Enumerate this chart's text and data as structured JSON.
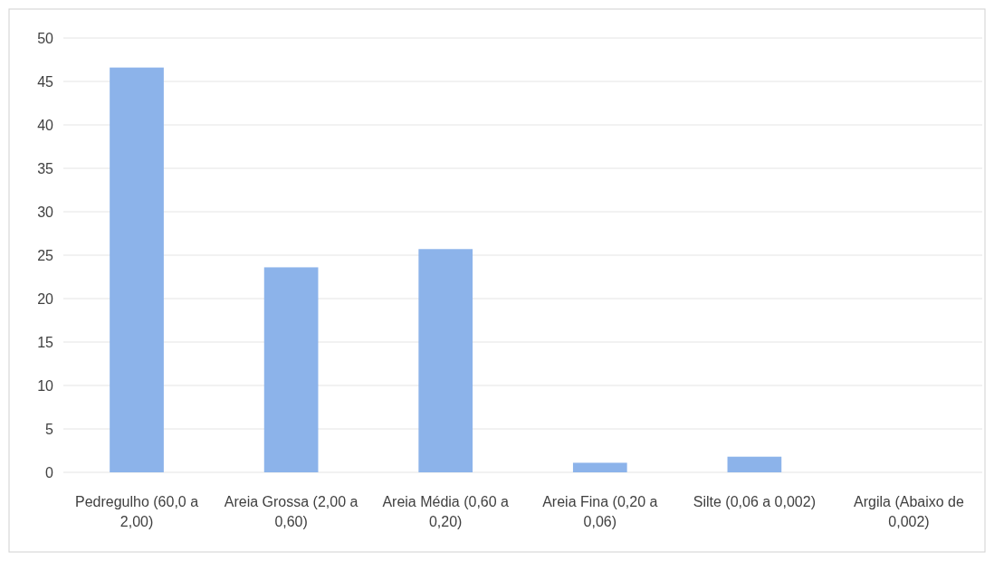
{
  "chart_data": {
    "type": "bar",
    "categories": [
      "Pedregulho (60,0 a 2,00)",
      "Areia Grossa (2,00 a 0,60)",
      "Areia Média (0,60 a 0,20)",
      "Areia Fina (0,20 a 0,06)",
      "Silte (0,06 a 0,002)",
      "Argila (Abaixo de 0,002)"
    ],
    "values": [
      46.6,
      23.6,
      25.7,
      1.1,
      1.8,
      0
    ],
    "color": "#8cb3ea",
    "ylim": [
      0,
      50
    ],
    "yticks": [
      0,
      5,
      10,
      15,
      20,
      25,
      30,
      35,
      40,
      45,
      50
    ],
    "grid": "y"
  }
}
